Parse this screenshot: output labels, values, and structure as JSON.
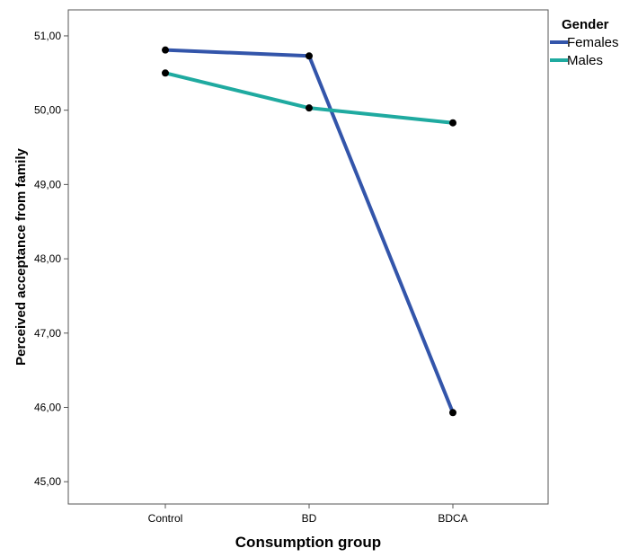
{
  "chart_data": {
    "type": "line",
    "xlabel": "Consumption group",
    "ylabel": "Perceived acceptance from family",
    "categories": [
      "Control",
      "BD",
      "BDCA"
    ],
    "ylim": [
      44.7,
      51.35
    ],
    "y_ticks": [
      45,
      46,
      47,
      48,
      49,
      50,
      51
    ],
    "y_tick_labels": [
      "45,00",
      "46,00",
      "47,00",
      "48,00",
      "49,00",
      "50,00",
      "51,00"
    ],
    "grid": false,
    "legend": {
      "title": "Gender",
      "placement": "right"
    },
    "series": [
      {
        "name": "Females",
        "color": "#3355aa",
        "values": [
          50.81,
          50.73,
          45.93
        ]
      },
      {
        "name": "Males",
        "color": "#1faaa0",
        "values": [
          50.5,
          50.03,
          49.83
        ]
      }
    ],
    "marker_color": "#000000"
  }
}
